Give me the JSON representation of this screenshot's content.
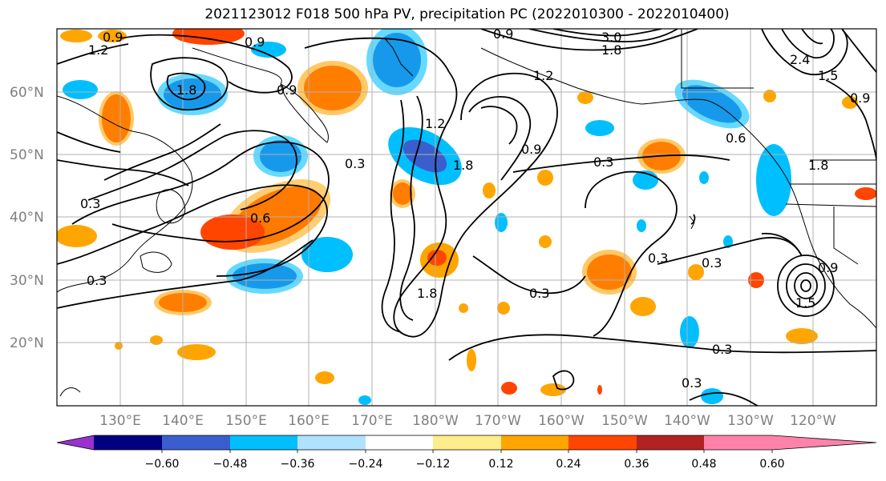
{
  "title": "2021123012 F018 500 hPa PV, precipitation PC (2022010300 - 2022010400)",
  "latitudes": [
    "60°N",
    "50°N",
    "40°N",
    "30°N",
    "20°N"
  ],
  "longitudes": [
    "130°E",
    "140°E",
    "150°E",
    "160°E",
    "170°E",
    "180°W",
    "170°W",
    "160°W",
    "150°W",
    "140°W",
    "130°W",
    "120°W"
  ],
  "colorbar": {
    "colors": [
      "#9932cc",
      "#000080",
      "#3a5fcd",
      "#00bfff",
      "#b0e2ff",
      "#ffffff",
      "#ffec8b",
      "#ffa500",
      "#ff4500",
      "#b22222",
      "#ff82ab"
    ],
    "labels": [
      "−0.60",
      "−0.48",
      "−0.36",
      "−0.24",
      "−0.12",
      "0.12",
      "0.24",
      "0.36",
      "0.48",
      "0.60"
    ]
  },
  "contour_labels": [
    "1.2",
    "0.9",
    "0.9",
    "1.8",
    "0.9",
    "0.3",
    "0.6",
    "0.3",
    "0.3",
    "1.8",
    "0.9",
    "0.3",
    "0.3",
    "0.3",
    "0.3",
    "0.3",
    "1.5",
    "0.3",
    "2.4",
    "0.9",
    "3.0",
    "1.8",
    "0.6",
    "1.8",
    "1.2",
    "1.5",
    "0.9",
    "1.2",
    "0.9",
    "1.8"
  ]
}
